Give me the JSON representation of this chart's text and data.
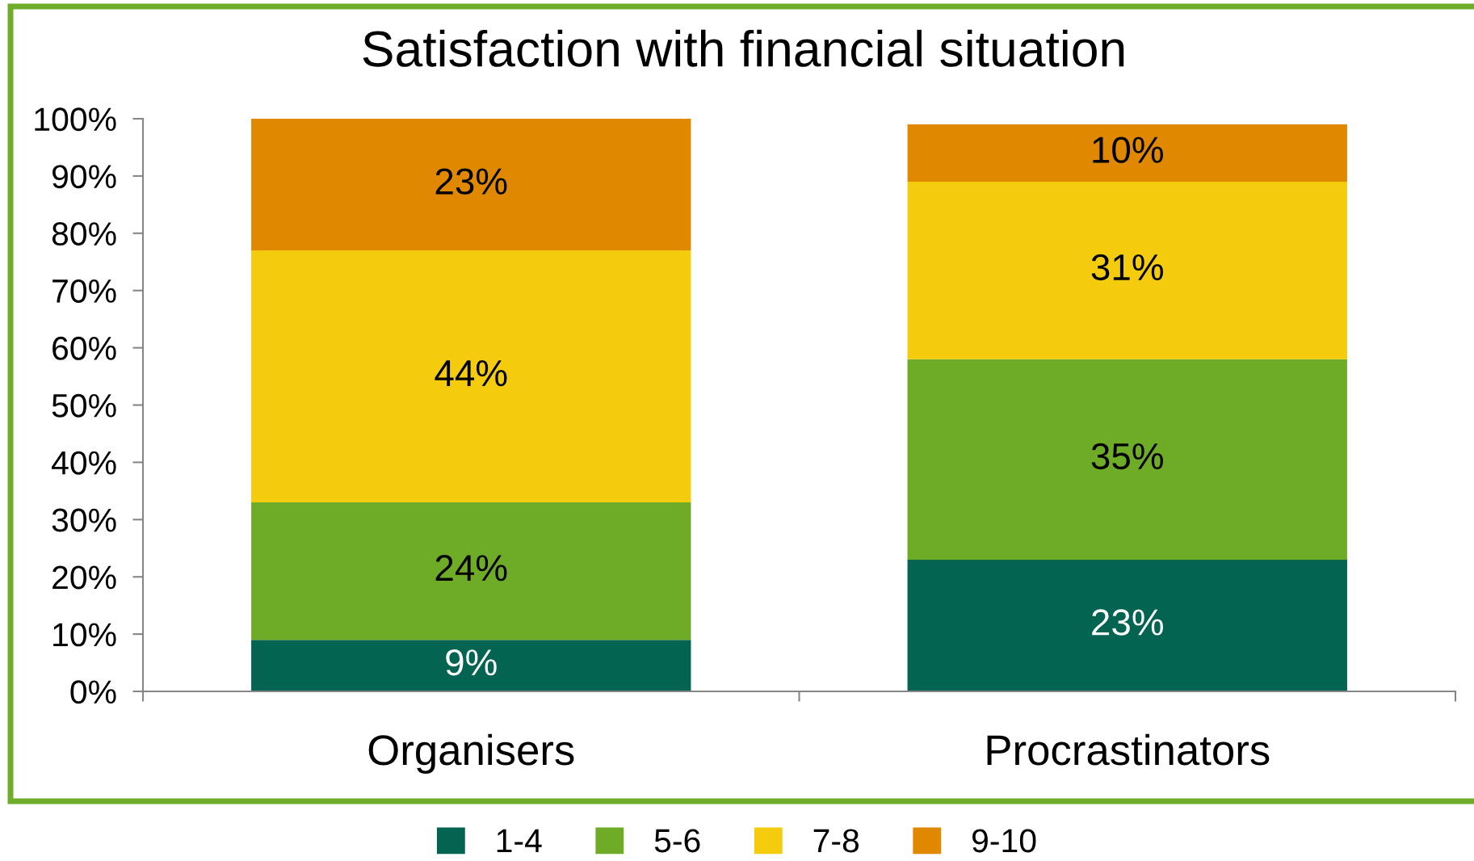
{
  "chart_data": {
    "type": "bar",
    "title": "Satisfaction with financial situation",
    "categories": [
      "Organisers",
      "Procrastinators"
    ],
    "stacked": true,
    "series": [
      {
        "name": "1-4",
        "color": "#026451",
        "values": [
          9,
          23
        ],
        "value_labels": [
          "9%",
          "23%"
        ]
      },
      {
        "name": "5-6",
        "color": "#6eab26",
        "values": [
          24,
          35
        ],
        "value_labels": [
          "24%",
          "35%"
        ]
      },
      {
        "name": "7-8",
        "color": "#f5cc0d",
        "values": [
          44,
          31
        ],
        "value_labels": [
          "44%",
          "31%"
        ]
      },
      {
        "name": "9-10",
        "color": "#df8800",
        "values": [
          23,
          10
        ],
        "value_labels": [
          "23%",
          "10%"
        ]
      }
    ],
    "ylim": [
      0,
      100
    ],
    "yticks": [
      {
        "value": 0,
        "label": "0%"
      },
      {
        "value": 10,
        "label": "10%"
      },
      {
        "value": 20,
        "label": "20%"
      },
      {
        "value": 30,
        "label": "30%"
      },
      {
        "value": 40,
        "label": "40%"
      },
      {
        "value": 50,
        "label": "50%"
      },
      {
        "value": 60,
        "label": "60%"
      },
      {
        "value": 70,
        "label": "70%"
      },
      {
        "value": 80,
        "label": "80%"
      },
      {
        "value": 90,
        "label": "90%"
      },
      {
        "value": 100,
        "label": "100%"
      }
    ],
    "legend": "bottom"
  }
}
